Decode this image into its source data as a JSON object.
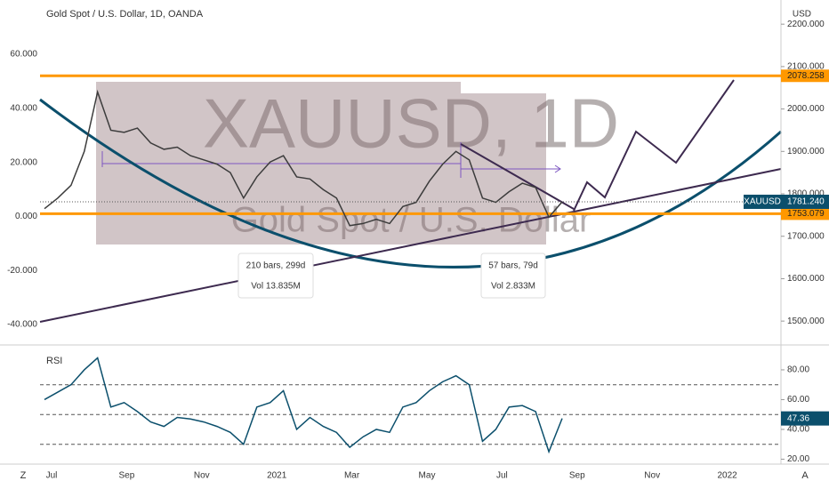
{
  "header": {
    "title": "Gold Spot / U.S. Dollar, 1D, OANDA",
    "currency": "USD",
    "watermark_symbol": "XAUUSD, 1D",
    "watermark_name": "Gold Spot / U.S. Dollar",
    "corner_left": "Z",
    "corner_right": "A"
  },
  "chart_data": {
    "type": "line",
    "series": [
      {
        "name": "XAUUSD",
        "color": "#3c3c3c",
        "axis": "y2",
        "values": [
          1765,
          1790,
          1820,
          1900,
          2040,
          1950,
          1945,
          1955,
          1920,
          1905,
          1910,
          1890,
          1880,
          1870,
          1850,
          1790,
          1840,
          1875,
          1890,
          1840,
          1835,
          1810,
          1790,
          1725,
          1730,
          1740,
          1730,
          1770,
          1780,
          1830,
          1870,
          1900,
          1880,
          1790,
          1780,
          1805,
          1825,
          1815,
          1745,
          1781.24
        ]
      }
    ],
    "ylim": [
      -46.6,
      76.8
    ],
    "yticks": [
      {
        "value": 60,
        "label": "60.000"
      },
      {
        "value": 40,
        "label": "40.000"
      },
      {
        "value": 20,
        "label": "20.000"
      },
      {
        "value": 0,
        "label": "0.000"
      },
      {
        "value": -20,
        "label": "-20.000"
      },
      {
        "value": -40,
        "label": "-40.000"
      }
    ],
    "y2lim": [
      1450,
      2236
    ],
    "y2ticks": [
      {
        "value": 2200,
        "label": "2200.000"
      },
      {
        "value": 2100,
        "label": "2100.000"
      },
      {
        "value": 2000,
        "label": "2000.000"
      },
      {
        "value": 1900,
        "label": "1900.000"
      },
      {
        "value": 1800,
        "label": "1800.000"
      },
      {
        "value": 1700,
        "label": "1700.000"
      },
      {
        "value": 1600,
        "label": "1600.000"
      },
      {
        "value": 1500,
        "label": "1500.000"
      }
    ],
    "last_price": {
      "value": 1781.24,
      "label": "1781.240"
    },
    "levels": [
      {
        "value": 2078.258,
        "label": "2078.258",
        "color": "#ff9800"
      },
      {
        "value": 1753.079,
        "label": "1753.079",
        "color": "#ff9800"
      }
    ],
    "time_labels": [
      "Jul",
      "Sep",
      "Nov",
      "2021",
      "Mar",
      "May",
      "Jul",
      "Sep",
      "Nov",
      "2022"
    ],
    "measurements": [
      {
        "bars": "210 bars, 299d",
        "volume": "Vol 13.835M"
      },
      {
        "bars": "57 bars, 79d",
        "volume": "Vol 2.833M"
      }
    ],
    "rsi": {
      "label": "RSI",
      "color": "#0b4f6c",
      "values": [
        60,
        65,
        70,
        80,
        88,
        55,
        58,
        52,
        45,
        42,
        48,
        47,
        45,
        42,
        38,
        30,
        55,
        58,
        66,
        40,
        48,
        42,
        38,
        28,
        35,
        40,
        38,
        55,
        58,
        66,
        72,
        76,
        70,
        32,
        40,
        55,
        56,
        52,
        25,
        47.36
      ],
      "ylim": [
        16.7,
        94.3
      ],
      "yticks": [
        {
          "value": 80,
          "label": "80.00"
        },
        {
          "value": 60,
          "label": "60.00"
        },
        {
          "value": 40,
          "label": "40.00"
        },
        {
          "value": 20,
          "label": "20.00"
        }
      ],
      "bands": [
        70,
        50,
        30
      ],
      "current": {
        "value": 47.36,
        "label": "47.36"
      }
    }
  }
}
